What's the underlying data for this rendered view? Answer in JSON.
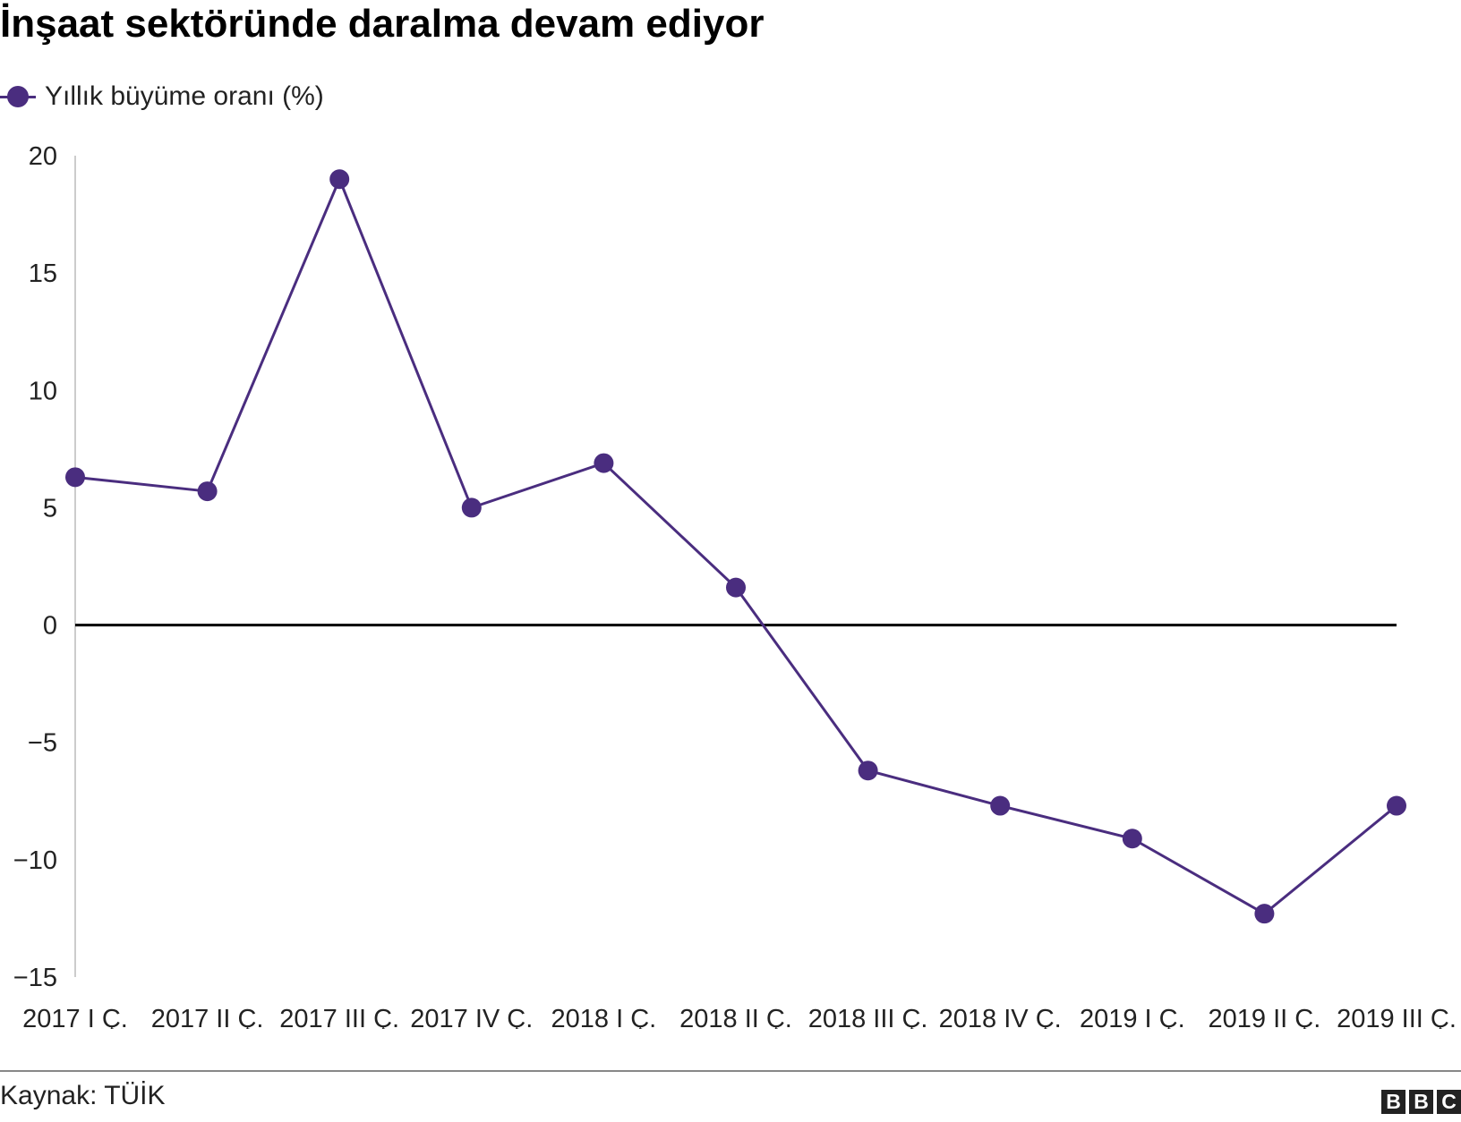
{
  "title": "İnşaat sektöründe daralma devam ediyor",
  "legend": {
    "label": "Yıllık büyüme oranı (%)"
  },
  "source": "Kaynak: TÜİK",
  "logo": [
    "B",
    "B",
    "C"
  ],
  "colors": {
    "series": "#4a2d7f",
    "zero_line": "#000000",
    "axis": "#cccccc",
    "text": "#222222"
  },
  "chart_data": {
    "type": "line",
    "title": "İnşaat sektöründe daralma devam ediyor",
    "xlabel": "",
    "ylabel": "",
    "categories": [
      "2017 I Ç.",
      "2017 II Ç.",
      "2017 III Ç.",
      "2017 IV Ç.",
      "2018 I Ç.",
      "2018 II Ç.",
      "2018 III Ç.",
      "2018 IV Ç.",
      "2019 I Ç.",
      "2019 II Ç.",
      "2019 III Ç."
    ],
    "series": [
      {
        "name": "Yıllık büyüme oranı (%)",
        "values": [
          6.3,
          5.7,
          19.0,
          5.0,
          6.9,
          1.6,
          -6.2,
          -7.7,
          -9.1,
          -12.3,
          -7.7
        ]
      }
    ],
    "ylim": [
      -15,
      20
    ],
    "yticks": [
      20,
      15,
      10,
      5,
      0,
      -5,
      -10,
      -15
    ],
    "ytick_labels": [
      "20",
      "15",
      "10",
      "5",
      "0",
      "−5",
      "−10",
      "−15"
    ],
    "grid": false,
    "legend_position": "top-left"
  }
}
